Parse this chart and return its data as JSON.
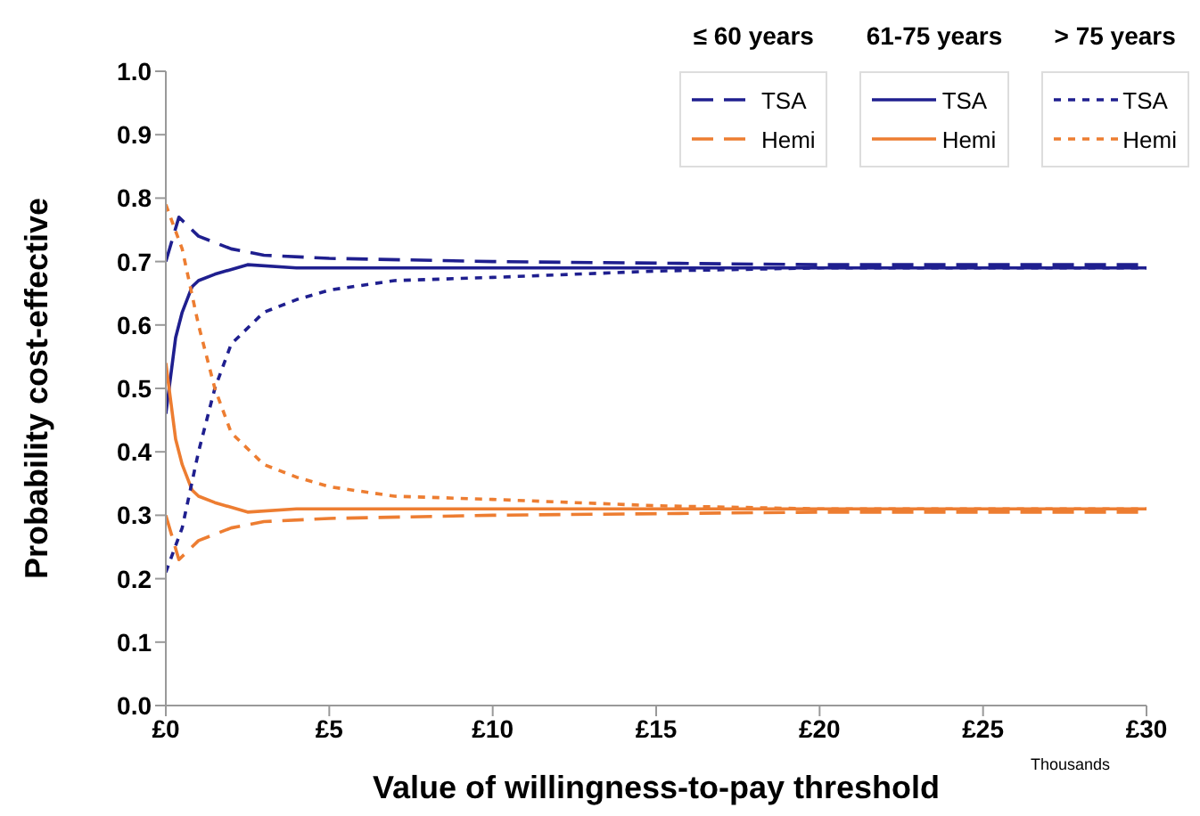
{
  "chart_data": {
    "type": "line",
    "xlabel": "Value of willingness-to-pay threshold",
    "ylabel": "Probability cost-effective",
    "xlim": [
      0,
      30
    ],
    "xticks": [
      {
        "value": 0,
        "label": "£0"
      },
      {
        "value": 5,
        "label": "£5"
      },
      {
        "value": 10,
        "label": "£10"
      },
      {
        "value": 15,
        "label": "£15"
      },
      {
        "value": 20,
        "label": "£20"
      },
      {
        "value": 25,
        "label": "£25"
      },
      {
        "value": 30,
        "label": "£30"
      }
    ],
    "ylim": [
      0,
      1
    ],
    "yticks": [
      {
        "value": 0,
        "label": "0.0"
      },
      {
        "value": 0.1,
        "label": "0.1"
      },
      {
        "value": 0.2,
        "label": "0.2"
      },
      {
        "value": 0.3,
        "label": "0.3"
      },
      {
        "value": 0.4,
        "label": "0.4"
      },
      {
        "value": 0.5,
        "label": "0.5"
      },
      {
        "value": 0.6,
        "label": "0.6"
      },
      {
        "value": 0.7,
        "label": "0.7"
      },
      {
        "value": 0.8,
        "label": "0.8"
      },
      {
        "value": 0.9,
        "label": "0.9"
      },
      {
        "value": 1,
        "label": "1.0"
      }
    ],
    "legend": "top right",
    "grid": false,
    "marker": "none",
    "annotations": [
      "≤ 60 years",
      "61-75 years",
      "> 75 years",
      "Thousands"
    ],
    "series": [
      {
        "name": "TSA",
        "color": "#1f1f8f",
        "line_style": "dashed",
        "x": [
          0,
          0.4,
          1,
          2,
          3,
          5,
          10,
          20,
          30
        ],
        "values": [
          0.7,
          0.77,
          0.74,
          0.72,
          0.71,
          0.705,
          0.7,
          0.695,
          0.695
        ]
      },
      {
        "name": "Hemi",
        "color": "#ed7d31",
        "line_style": "dashed",
        "x": [
          0,
          0.4,
          1,
          2,
          3,
          5,
          10,
          20,
          30
        ],
        "values": [
          0.3,
          0.23,
          0.26,
          0.28,
          0.29,
          0.295,
          0.3,
          0.305,
          0.305
        ]
      },
      {
        "name": "TSA",
        "color": "#1f1f8f",
        "line_style": "solid",
        "x": [
          0,
          0.3,
          0.5,
          0.8,
          1,
          1.5,
          2.5,
          4,
          10,
          20,
          30
        ],
        "values": [
          0.46,
          0.58,
          0.62,
          0.66,
          0.67,
          0.68,
          0.695,
          0.69,
          0.69,
          0.69,
          0.69
        ]
      },
      {
        "name": "Hemi",
        "color": "#ed7d31",
        "line_style": "solid",
        "x": [
          0,
          0.3,
          0.5,
          0.8,
          1,
          1.5,
          2.5,
          4,
          10,
          20,
          30
        ],
        "values": [
          0.54,
          0.42,
          0.38,
          0.34,
          0.33,
          0.32,
          0.305,
          0.31,
          0.31,
          0.31,
          0.31
        ]
      },
      {
        "name": "TSA",
        "color": "#1f1f8f",
        "line_style": "dotted",
        "x": [
          0,
          0.5,
          1,
          1.5,
          2,
          3,
          4,
          5,
          7,
          10,
          15,
          20,
          30
        ],
        "values": [
          0.21,
          0.28,
          0.4,
          0.5,
          0.57,
          0.62,
          0.64,
          0.655,
          0.67,
          0.675,
          0.685,
          0.69,
          0.69
        ]
      },
      {
        "name": "Hemi",
        "color": "#ed7d31",
        "line_style": "dotted",
        "x": [
          0,
          0.5,
          1,
          1.5,
          2,
          3,
          4,
          5,
          7,
          10,
          15,
          20,
          30
        ],
        "values": [
          0.79,
          0.72,
          0.6,
          0.5,
          0.43,
          0.38,
          0.36,
          0.345,
          0.33,
          0.325,
          0.315,
          0.31,
          0.31
        ]
      }
    ]
  }
}
